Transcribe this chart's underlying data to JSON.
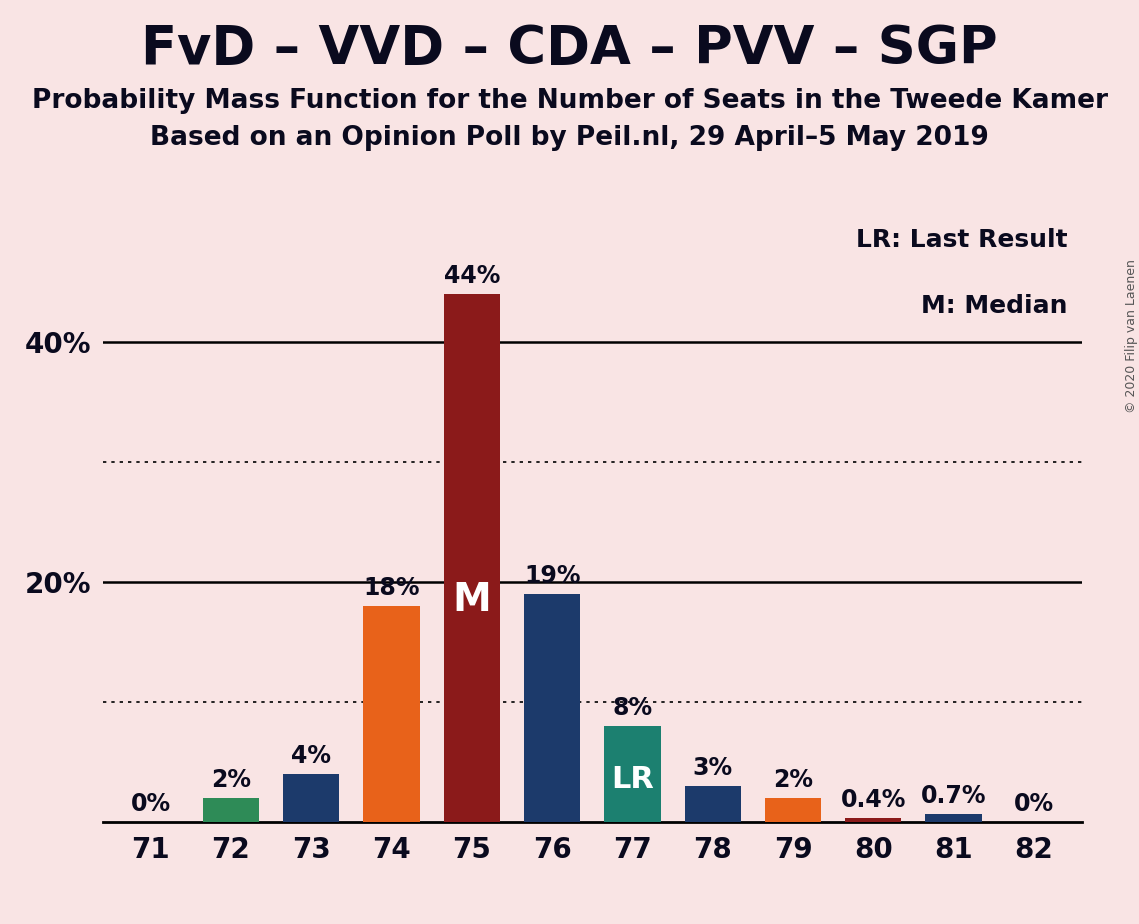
{
  "title": "FvD – VVD – CDA – PVV – SGP",
  "subtitle1": "Probability Mass Function for the Number of Seats in the Tweede Kamer",
  "subtitle2": "Based on an Opinion Poll by Peil.nl, 29 April–5 May 2019",
  "copyright": "© 2020 Filip van Laenen",
  "categories": [
    71,
    72,
    73,
    74,
    75,
    76,
    77,
    78,
    79,
    80,
    81,
    82
  ],
  "values": [
    0.0,
    2.0,
    4.0,
    18.0,
    44.0,
    19.0,
    8.0,
    3.0,
    2.0,
    0.4,
    0.7,
    0.0
  ],
  "labels": [
    "0%",
    "2%",
    "4%",
    "18%",
    "44%",
    "19%",
    "8%",
    "3%",
    "2%",
    "0.4%",
    "0.7%",
    "0%"
  ],
  "colors": [
    "#2e8b57",
    "#2e8b57",
    "#1c3a6b",
    "#e8621a",
    "#8b1a1a",
    "#1c3a6b",
    "#1c8070",
    "#1c3a6b",
    "#e8621a",
    "#8b1a1a",
    "#1c3a6b",
    "#1c3a6b"
  ],
  "median_bar": 4,
  "lr_bar": 6,
  "median_label": "M",
  "lr_label": "LR",
  "legend_lr": "LR: Last Result",
  "legend_m": "M: Median",
  "background_color": "#f9e4e4",
  "ylim": [
    0,
    50
  ],
  "solid_yticks": [
    20,
    40
  ],
  "dotted_yticks": [
    10,
    30
  ],
  "title_fontsize": 38,
  "subtitle_fontsize": 19,
  "label_fontsize": 17,
  "tick_fontsize": 20,
  "bar_width": 0.7
}
